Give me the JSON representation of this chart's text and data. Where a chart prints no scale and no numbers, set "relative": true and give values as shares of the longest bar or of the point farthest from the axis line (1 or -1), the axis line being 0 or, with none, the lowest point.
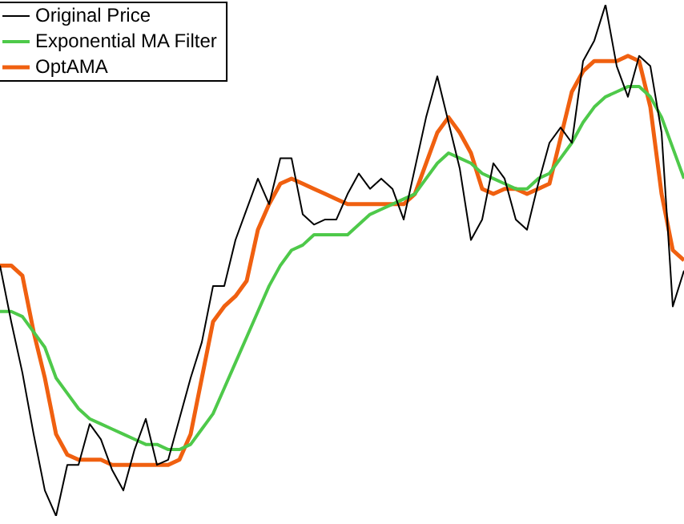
{
  "chart_data": {
    "type": "line",
    "relative": true,
    "legend": "top left",
    "marker": "none",
    "line_style": "solid",
    "categories": [
      null,
      null,
      null,
      null,
      null,
      null,
      null,
      null,
      null,
      null,
      null,
      null,
      null,
      null,
      null,
      null,
      null,
      null,
      null,
      null,
      null,
      null,
      null,
      null,
      null,
      null,
      null,
      null,
      null,
      null,
      null,
      null,
      null,
      null,
      null,
      null,
      null,
      null,
      null,
      null,
      null,
      null,
      null,
      null,
      null,
      null,
      null,
      null,
      null,
      null,
      null,
      null,
      null,
      null,
      null,
      null,
      null,
      null,
      null,
      null,
      null,
      null
    ],
    "series": [
      {
        "name": "Original Price",
        "color": "#000000",
        "values": [
          0.49,
          0.38,
          0.28,
          0.16,
          0.05,
          0,
          0.1,
          0.1,
          0.18,
          0.15,
          0.09,
          0.05,
          0.13,
          0.19,
          0.1,
          0.11,
          0.19,
          0.27,
          0.34,
          0.45,
          0.45,
          0.54,
          0.6,
          0.66,
          0.61,
          0.7,
          0.7,
          0.59,
          0.57,
          0.58,
          0.58,
          0.63,
          0.67,
          0.64,
          0.66,
          0.64,
          0.58,
          0.68,
          0.78,
          0.86,
          0.77,
          0.68,
          0.54,
          0.58,
          0.69,
          0.66,
          0.58,
          0.56,
          0.65,
          0.73,
          0.76,
          0.73,
          0.89,
          0.93,
          1,
          0.88,
          0.82,
          0.9,
          0.88,
          0.75,
          0.41,
          0.48
        ]
      },
      {
        "name": "Exponential MA Filter",
        "color": "#4ec94a",
        "values": [
          0.4,
          0.4,
          0.39,
          0.36,
          0.33,
          0.27,
          0.24,
          0.21,
          0.19,
          0.18,
          0.17,
          0.16,
          0.15,
          0.14,
          0.14,
          0.13,
          0.13,
          0.14,
          0.17,
          0.2,
          0.25,
          0.3,
          0.35,
          0.4,
          0.45,
          0.49,
          0.52,
          0.53,
          0.55,
          0.55,
          0.55,
          0.55,
          0.57,
          0.59,
          0.6,
          0.61,
          0.62,
          0.63,
          0.66,
          0.69,
          0.71,
          0.7,
          0.69,
          0.67,
          0.66,
          0.65,
          0.64,
          0.64,
          0.66,
          0.67,
          0.7,
          0.73,
          0.77,
          0.8,
          0.82,
          0.83,
          0.84,
          0.84,
          0.82,
          0.78,
          0.72,
          0.66
        ]
      },
      {
        "name": "OptAMA",
        "color": "#f06010",
        "values": [
          0.49,
          0.49,
          0.47,
          0.36,
          0.27,
          0.16,
          0.12,
          0.11,
          0.11,
          0.11,
          0.1,
          0.1,
          0.1,
          0.1,
          0.1,
          0.1,
          0.11,
          0.16,
          0.27,
          0.38,
          0.41,
          0.43,
          0.46,
          0.56,
          0.61,
          0.65,
          0.66,
          0.65,
          0.64,
          0.63,
          0.62,
          0.61,
          0.61,
          0.61,
          0.61,
          0.61,
          0.61,
          0.63,
          0.69,
          0.75,
          0.78,
          0.75,
          0.71,
          0.64,
          0.63,
          0.64,
          0.64,
          0.63,
          0.64,
          0.65,
          0.74,
          0.83,
          0.87,
          0.89,
          0.89,
          0.89,
          0.9,
          0.89,
          0.8,
          0.63,
          0.52,
          0.5
        ]
      }
    ]
  }
}
